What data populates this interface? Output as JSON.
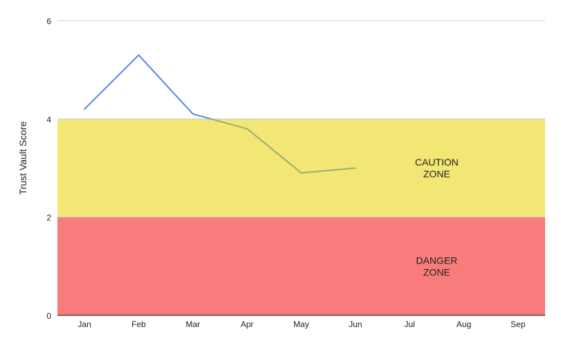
{
  "chart_data": {
    "type": "line",
    "title": "",
    "xlabel": "",
    "ylabel": "Trust Vault Score",
    "categories": [
      "Jan",
      "Feb",
      "Mar",
      "Apr",
      "May",
      "Jun",
      "Jul",
      "Aug",
      "Sep"
    ],
    "series": [
      {
        "values": [
          4.2,
          5.3,
          4.1,
          3.8,
          2.9,
          3.0,
          null,
          null,
          null
        ]
      }
    ],
    "ylim": [
      0,
      6
    ],
    "yticks": [
      "0",
      "2",
      "4",
      "6"
    ],
    "grid": true,
    "zones": [
      {
        "label_lines": [
          "CAUTION",
          "ZONE"
        ],
        "from": 2,
        "to": 4,
        "color": "#f2e674"
      },
      {
        "label_lines": [
          "DANGER",
          "ZONE"
        ],
        "from": 0,
        "to": 2,
        "color": "#f77c7b"
      }
    ],
    "colors": {
      "line": "#4f86ec",
      "line_in_zone": "#96ae78",
      "grid": "#cccccc",
      "axis": "#333333"
    }
  }
}
